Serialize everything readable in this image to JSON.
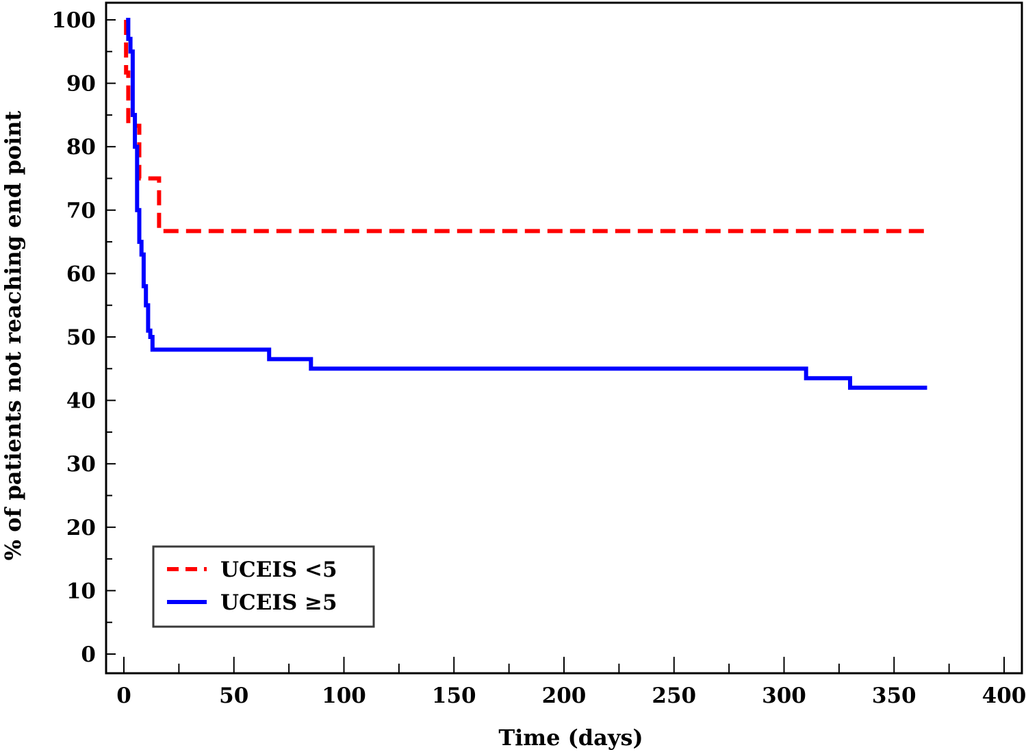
{
  "chart_data": {
    "type": "line",
    "step": true,
    "xlabel": "Time (days)",
    "ylabel": "% of patients not reaching end point",
    "xlim": [
      0,
      400
    ],
    "ylim": [
      0,
      100
    ],
    "x_ticks": [
      0,
      50,
      100,
      150,
      200,
      250,
      300,
      350,
      400
    ],
    "y_ticks": [
      0,
      10,
      20,
      30,
      40,
      50,
      60,
      70,
      80,
      90,
      100
    ],
    "grid": false,
    "legend_position": "bottom-left",
    "series": [
      {
        "name": "UCEIS <5",
        "color": "#ff0000",
        "dash": true,
        "points": [
          [
            1,
            100
          ],
          [
            1,
            91.7
          ],
          [
            2,
            91.7
          ],
          [
            2,
            83.3
          ],
          [
            7,
            83.3
          ],
          [
            7,
            75
          ],
          [
            16,
            75
          ],
          [
            16,
            66.7
          ],
          [
            365,
            66.7
          ]
        ]
      },
      {
        "name": "UCEIS ≥5",
        "color": "#0000ff",
        "dash": false,
        "points": [
          [
            1,
            100
          ],
          [
            2,
            100
          ],
          [
            2,
            97
          ],
          [
            3,
            97
          ],
          [
            3,
            95
          ],
          [
            4,
            95
          ],
          [
            4,
            85
          ],
          [
            5,
            85
          ],
          [
            5,
            80
          ],
          [
            6,
            80
          ],
          [
            6,
            70
          ],
          [
            7,
            70
          ],
          [
            7,
            65
          ],
          [
            8,
            65
          ],
          [
            8,
            63
          ],
          [
            9,
            63
          ],
          [
            9,
            58
          ],
          [
            10,
            58
          ],
          [
            10,
            55
          ],
          [
            11,
            55
          ],
          [
            11,
            51
          ],
          [
            12,
            51
          ],
          [
            12,
            50
          ],
          [
            13,
            50
          ],
          [
            13,
            48
          ],
          [
            66,
            48
          ],
          [
            66,
            46.5
          ],
          [
            85,
            46.5
          ],
          [
            85,
            45
          ],
          [
            310,
            45
          ],
          [
            310,
            43.5
          ],
          [
            330,
            43.5
          ],
          [
            330,
            42
          ],
          [
            365,
            42
          ]
        ]
      }
    ]
  }
}
